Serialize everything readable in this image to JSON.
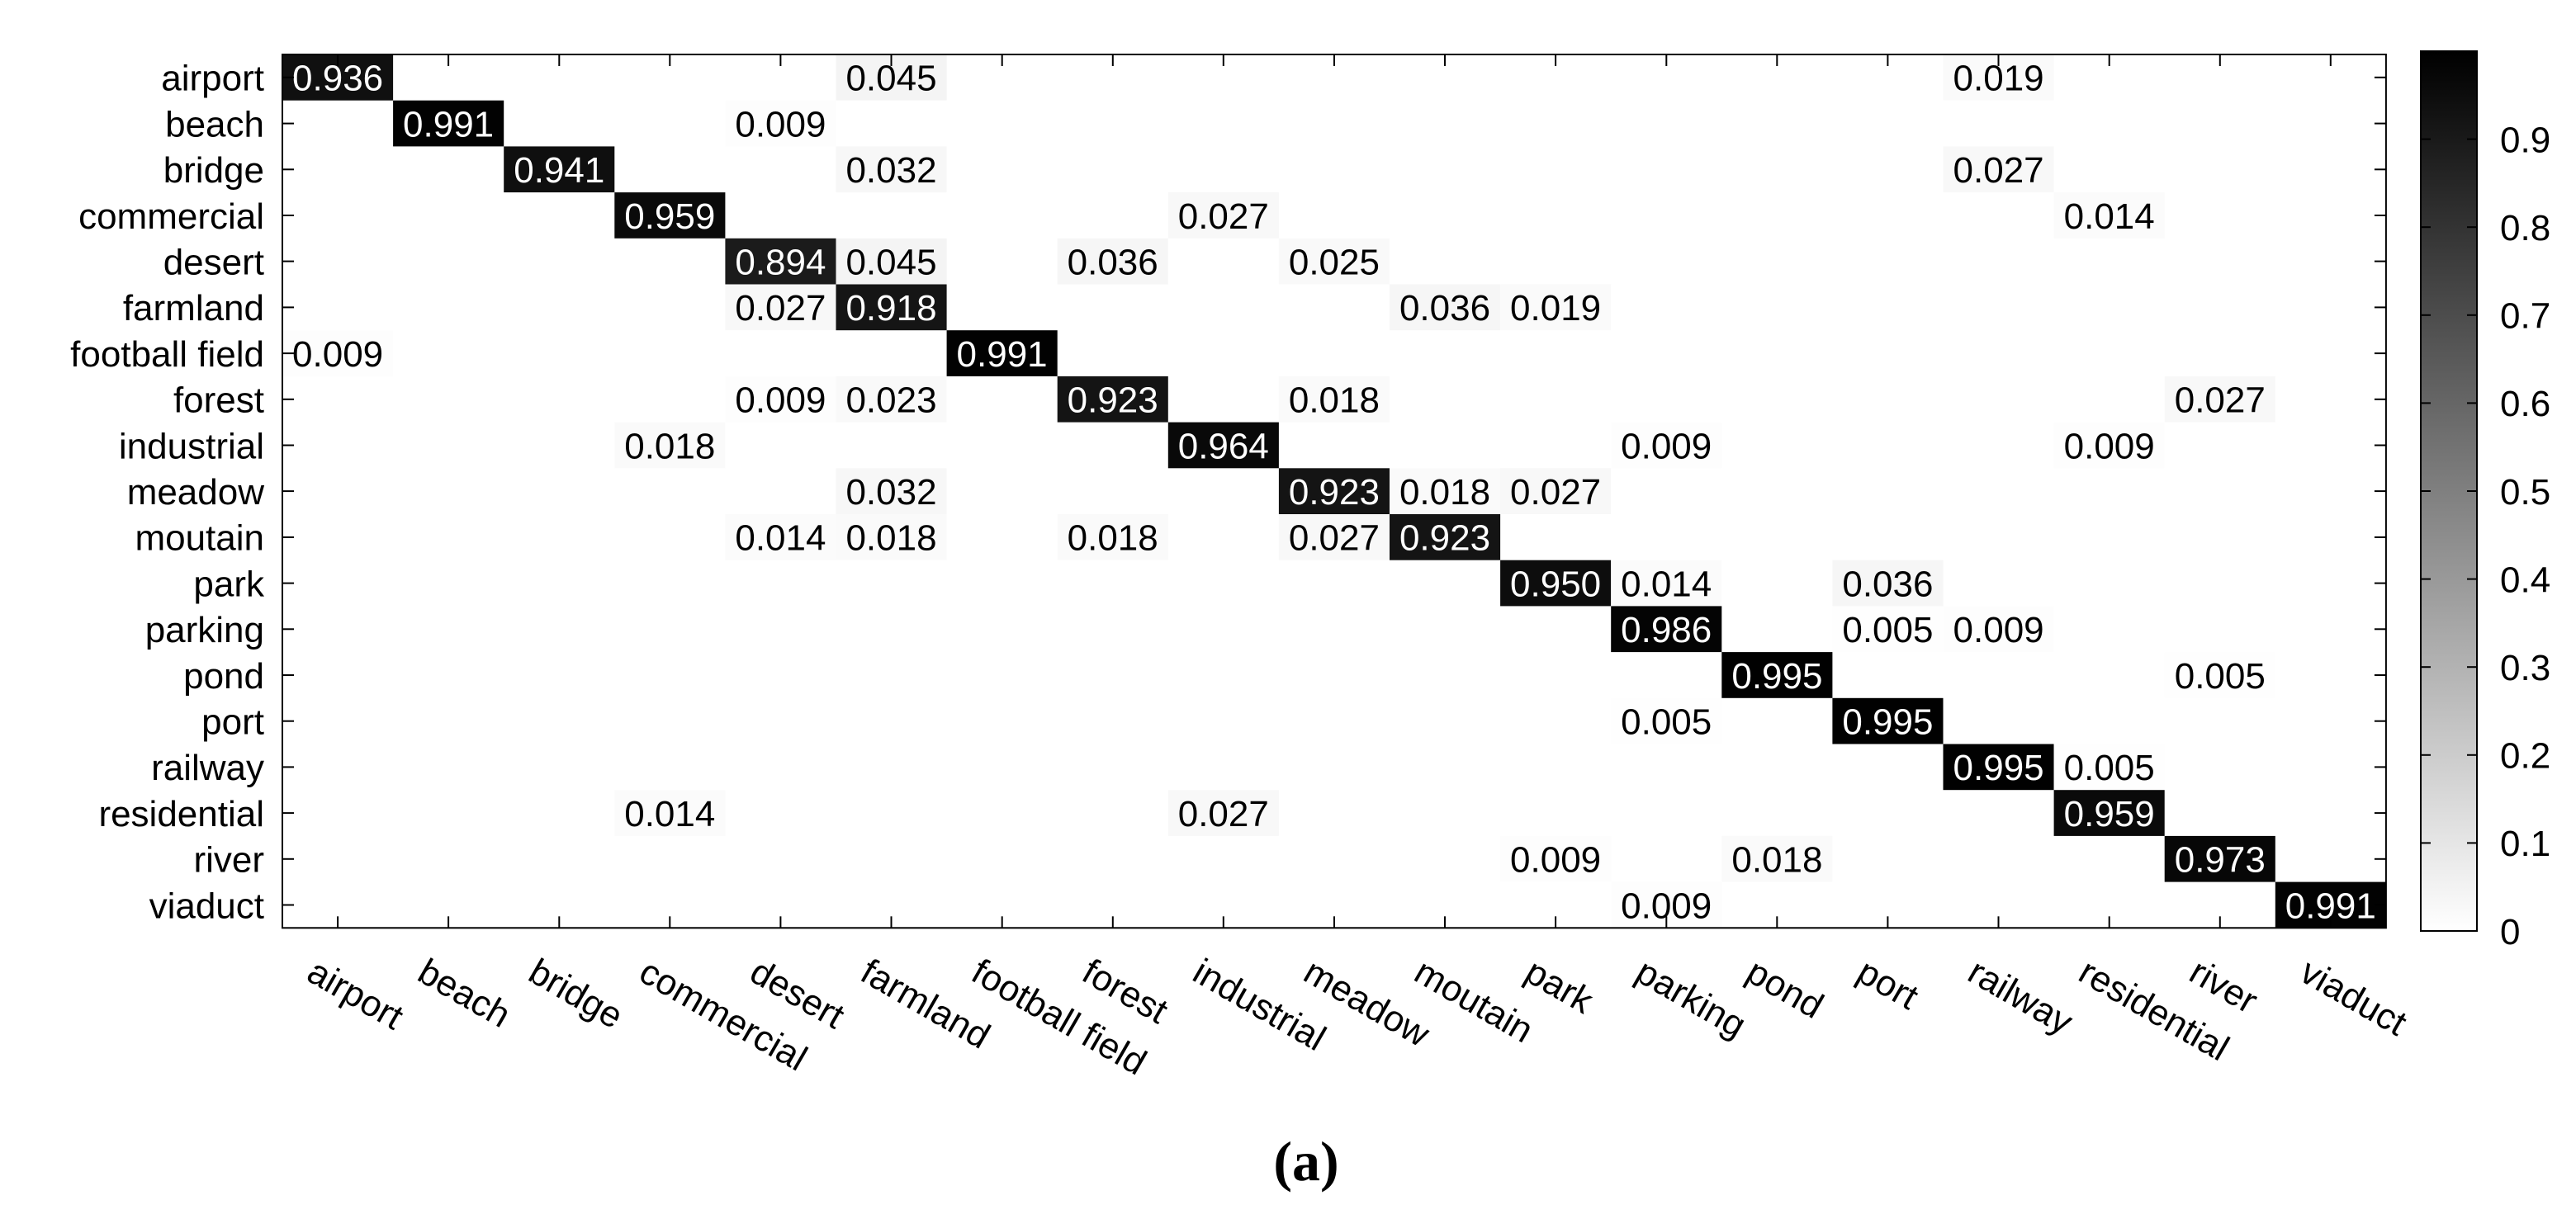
{
  "chart_data": {
    "type": "heatmap",
    "title": "",
    "caption": "(a)",
    "xlabel": "",
    "ylabel": "",
    "row_labels": [
      "airport",
      "beach",
      "bridge",
      "commercial",
      "desert",
      "farmland",
      "football field",
      "forest",
      "industrial",
      "meadow",
      "moutain",
      "park",
      "parking",
      "pond",
      "port",
      "railway",
      "residential",
      "river",
      "viaduct"
    ],
    "col_labels": [
      "airport",
      "beach",
      "bridge",
      "commercial",
      "desert",
      "farmland",
      "football field",
      "forest",
      "industrial",
      "meadow",
      "moutain",
      "park",
      "parking",
      "pond",
      "port",
      "railway",
      "residential",
      "river",
      "viaduct"
    ],
    "cells": [
      {
        "row": 0,
        "col": 0,
        "value": 0.936,
        "label": "0.936"
      },
      {
        "row": 0,
        "col": 5,
        "value": 0.045,
        "label": "0.045"
      },
      {
        "row": 0,
        "col": 15,
        "value": 0.019,
        "label": "0.019"
      },
      {
        "row": 1,
        "col": 1,
        "value": 0.991,
        "label": "0.991"
      },
      {
        "row": 1,
        "col": 4,
        "value": 0.009,
        "label": "0.009"
      },
      {
        "row": 2,
        "col": 2,
        "value": 0.941,
        "label": "0.941"
      },
      {
        "row": 2,
        "col": 5,
        "value": 0.032,
        "label": "0.032"
      },
      {
        "row": 2,
        "col": 15,
        "value": 0.027,
        "label": "0.027"
      },
      {
        "row": 3,
        "col": 3,
        "value": 0.959,
        "label": "0.959"
      },
      {
        "row": 3,
        "col": 8,
        "value": 0.027,
        "label": "0.027"
      },
      {
        "row": 3,
        "col": 16,
        "value": 0.014,
        "label": "0.014"
      },
      {
        "row": 4,
        "col": 4,
        "value": 0.894,
        "label": "0.894"
      },
      {
        "row": 4,
        "col": 5,
        "value": 0.045,
        "label": "0.045"
      },
      {
        "row": 4,
        "col": 7,
        "value": 0.036,
        "label": "0.036"
      },
      {
        "row": 4,
        "col": 9,
        "value": 0.025,
        "label": "0.025"
      },
      {
        "row": 5,
        "col": 4,
        "value": 0.027,
        "label": "0.027"
      },
      {
        "row": 5,
        "col": 5,
        "value": 0.918,
        "label": "0.918"
      },
      {
        "row": 5,
        "col": 10,
        "value": 0.036,
        "label": "0.036"
      },
      {
        "row": 5,
        "col": 11,
        "value": 0.019,
        "label": "0.019"
      },
      {
        "row": 6,
        "col": 0,
        "value": 0.009,
        "label": "0.009"
      },
      {
        "row": 6,
        "col": 6,
        "value": 0.991,
        "label": "0.991"
      },
      {
        "row": 7,
        "col": 4,
        "value": 0.009,
        "label": "0.009"
      },
      {
        "row": 7,
        "col": 5,
        "value": 0.023,
        "label": "0.023"
      },
      {
        "row": 7,
        "col": 7,
        "value": 0.923,
        "label": "0.923"
      },
      {
        "row": 7,
        "col": 9,
        "value": 0.018,
        "label": "0.018"
      },
      {
        "row": 7,
        "col": 17,
        "value": 0.027,
        "label": "0.027"
      },
      {
        "row": 8,
        "col": 3,
        "value": 0.018,
        "label": "0.018"
      },
      {
        "row": 8,
        "col": 8,
        "value": 0.964,
        "label": "0.964"
      },
      {
        "row": 8,
        "col": 12,
        "value": 0.009,
        "label": "0.009"
      },
      {
        "row": 8,
        "col": 16,
        "value": 0.009,
        "label": "0.009"
      },
      {
        "row": 9,
        "col": 5,
        "value": 0.032,
        "label": "0.032"
      },
      {
        "row": 9,
        "col": 9,
        "value": 0.923,
        "label": "0.923"
      },
      {
        "row": 9,
        "col": 10,
        "value": 0.018,
        "label": "0.018"
      },
      {
        "row": 9,
        "col": 11,
        "value": 0.027,
        "label": "0.027"
      },
      {
        "row": 10,
        "col": 4,
        "value": 0.014,
        "label": "0.014"
      },
      {
        "row": 10,
        "col": 5,
        "value": 0.018,
        "label": "0.018"
      },
      {
        "row": 10,
        "col": 7,
        "value": 0.018,
        "label": "0.018"
      },
      {
        "row": 10,
        "col": 9,
        "value": 0.027,
        "label": "0.027"
      },
      {
        "row": 10,
        "col": 10,
        "value": 0.923,
        "label": "0.923"
      },
      {
        "row": 11,
        "col": 11,
        "value": 0.95,
        "label": "0.950"
      },
      {
        "row": 11,
        "col": 12,
        "value": 0.014,
        "label": "0.014"
      },
      {
        "row": 11,
        "col": 14,
        "value": 0.036,
        "label": "0.036"
      },
      {
        "row": 12,
        "col": 12,
        "value": 0.986,
        "label": "0.986"
      },
      {
        "row": 12,
        "col": 14,
        "value": 0.005,
        "label": "0.005"
      },
      {
        "row": 12,
        "col": 15,
        "value": 0.009,
        "label": "0.009"
      },
      {
        "row": 13,
        "col": 13,
        "value": 0.995,
        "label": "0.995"
      },
      {
        "row": 13,
        "col": 17,
        "value": 0.005,
        "label": "0.005"
      },
      {
        "row": 14,
        "col": 12,
        "value": 0.005,
        "label": "0.005"
      },
      {
        "row": 14,
        "col": 14,
        "value": 0.995,
        "label": "0.995"
      },
      {
        "row": 15,
        "col": 15,
        "value": 0.995,
        "label": "0.995"
      },
      {
        "row": 15,
        "col": 16,
        "value": 0.005,
        "label": "0.005"
      },
      {
        "row": 16,
        "col": 3,
        "value": 0.014,
        "label": "0.014"
      },
      {
        "row": 16,
        "col": 8,
        "value": 0.027,
        "label": "0.027"
      },
      {
        "row": 16,
        "col": 16,
        "value": 0.959,
        "label": "0.959"
      },
      {
        "row": 17,
        "col": 11,
        "value": 0.009,
        "label": "0.009"
      },
      {
        "row": 17,
        "col": 13,
        "value": 0.018,
        "label": "0.018"
      },
      {
        "row": 17,
        "col": 17,
        "value": 0.973,
        "label": "0.973"
      },
      {
        "row": 18,
        "col": 12,
        "value": 0.009,
        "label": "0.009"
      },
      {
        "row": 18,
        "col": 18,
        "value": 0.991,
        "label": "0.991"
      }
    ],
    "colorbar": {
      "colormap": "white-to-black",
      "vmin": 0,
      "vmax": 1,
      "ticks": [
        0,
        0.1,
        0.2,
        0.3,
        0.4,
        0.5,
        0.6,
        0.7,
        0.8,
        0.9
      ],
      "tick_labels": [
        "0",
        "0.1",
        "0.2",
        "0.3",
        "0.4",
        "0.5",
        "0.6",
        "0.7",
        "0.8",
        "0.9"
      ]
    },
    "colors": {
      "min_color": "#ffffff",
      "max_color": "#000000",
      "axis_color": "#000000",
      "text_dark": "#000000",
      "text_light": "#ffffff"
    }
  }
}
